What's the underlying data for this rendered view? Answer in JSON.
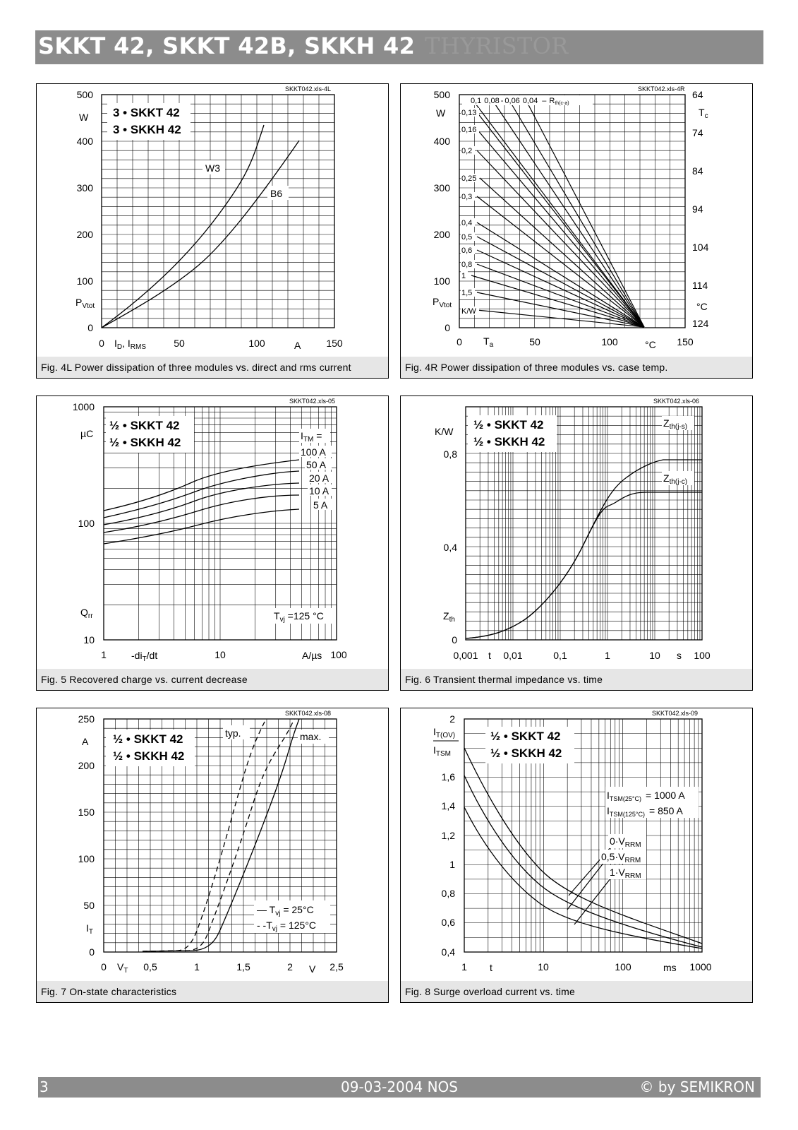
{
  "header": {
    "title": "SKKT 42, SKKT 42B, SKKH 42",
    "ghost": "THYRISTOR"
  },
  "fig4l": {
    "file_id": "SKKT042.xls-4L",
    "caption": "Fig. 4L Power dissipation of three modules vs. direct and rms current",
    "legend": [
      "3 • SKKT 42",
      "3 • SKKH 42"
    ],
    "yunit": "W",
    "ylabel": "P",
    "ylabel_sub": "Vtot",
    "xlabel": "I",
    "xlabel_sub1": "D",
    "xlabel_mid": ", I",
    "xlabel_sub2": "RMS",
    "xunit": "A",
    "yticks": [
      "500",
      "400",
      "300",
      "200",
      "100",
      "0"
    ],
    "xticks": [
      "0",
      "50",
      "100",
      "150"
    ],
    "curve_labels": [
      "W3",
      "B6"
    ]
  },
  "fig4r": {
    "file_id": "SKKT042.xls-4R",
    "caption": "Fig. 4R Power dissipation of three modules vs. case temp.",
    "yunit": "W",
    "ylabel": "P",
    "ylabel_sub": "Vtot",
    "xlabel": "T",
    "xlabel_sub": "a",
    "xunit": "°C",
    "yticks": [
      "500",
      "400",
      "300",
      "200",
      "100",
      "0"
    ],
    "xticks": [
      "0",
      "50",
      "100",
      "150"
    ],
    "rticks": [
      "64",
      "74",
      "84",
      "94",
      "104",
      "114",
      "124"
    ],
    "rlabel": "T",
    "rlabel_sub": "c",
    "runit": "°C",
    "rth_label": "R",
    "rth_sub": "th(c-a)",
    "rth_values": [
      "0,1",
      "0,08",
      "0,06",
      "0,04",
      "0,13",
      "0,16",
      "0,2",
      "0,25",
      "0,3",
      "0,4",
      "0,5",
      "0,6",
      "0,8",
      "1",
      "1,5"
    ],
    "rth_unit": "K/W"
  },
  "fig5": {
    "file_id": "SKKT042.xls-05",
    "caption": "Fig. 5 Recovered charge vs. current decrease",
    "legend": [
      "½ • SKKT 42",
      "½ • SKKH 42"
    ],
    "yunit": "µC",
    "ylabel": "Q",
    "ylabel_sub": "rr",
    "xlabel": "-di",
    "xlabel_sub": "T",
    "xlabel_tail": "/dt",
    "xunit": "A/µs",
    "yticks": [
      "1000",
      "100",
      "10"
    ],
    "xticks": [
      "1",
      "10",
      "100"
    ],
    "param": "I",
    "param_sub": "TM",
    "param_eq": " =",
    "curve_labels": [
      "100 A",
      "50 A",
      "20 A",
      "10 A",
      "5 A"
    ],
    "cond": "T",
    "cond_sub": "vj",
    "cond_val": " =125 °C"
  },
  "fig6": {
    "file_id": "SKKT042.xls-06",
    "caption": "Fig. 6 Transient thermal impedance vs. time",
    "legend": [
      "½ • SKKT 42",
      "½ • SKKH 42"
    ],
    "yunit": "K/W",
    "ylabel": "Z",
    "ylabel_sub": "th",
    "xlabel": "t",
    "xunit": "s",
    "yticks": [
      "0,8",
      "0,4",
      "0"
    ],
    "xticks": [
      "0,001",
      "0,01",
      "0,1",
      "1",
      "10",
      "100"
    ],
    "curve_labels": [
      {
        "main": "Z",
        "sub": "th(j-s)"
      },
      {
        "main": "Z",
        "sub": "th(j-c)"
      }
    ]
  },
  "fig7": {
    "file_id": "SKKT042.xls-08",
    "caption": "Fig. 7 On-state characteristics",
    "legend": [
      "½ • SKKT 42",
      "½ • SKKH 42"
    ],
    "yunit": "A",
    "ylabel": "I",
    "ylabel_sub": "T",
    "xlabel": "V",
    "xlabel_sub": "T",
    "xunit": "V",
    "yticks": [
      "250",
      "200",
      "150",
      "100",
      "50",
      "0"
    ],
    "xticks": [
      "0",
      "0,5",
      "1",
      "1,5",
      "2",
      "2,5"
    ],
    "typ_label": "typ.",
    "max_label": "max.",
    "cond1_prefix": "— T",
    "cond1_sub": "vj",
    "cond1_val": " =  25°C",
    "cond2_prefix": "- -T",
    "cond2_sub": "vj",
    "cond2_val": " = 125°C"
  },
  "fig8": {
    "file_id": "SKKT042.xls-09",
    "caption": "Fig. 8 Surge overload current vs. time",
    "legend": [
      "½ • SKKT 42",
      "½ • SKKH 42"
    ],
    "ylabel_top": "I",
    "ylabel_top_sub": "T(OV)",
    "ylabel_bot": "I",
    "ylabel_bot_sub": "TSM",
    "xlabel": "t",
    "xunit": "ms",
    "yticks": [
      "2",
      "1,6",
      "1,4",
      "1,2",
      "1",
      "0,8",
      "0,6",
      "0,4"
    ],
    "xticks": [
      "1",
      "10",
      "100",
      "1000"
    ],
    "tsm1_main": "I",
    "tsm1_sub": "TSM(25°C)",
    "tsm1_val": "= 1000 A",
    "tsm2_main": "I",
    "tsm2_sub": "TSM(125°C)",
    "tsm2_val": "=   850 A",
    "vr_labels": [
      {
        "pre": "0·V",
        "sub": "RRM"
      },
      {
        "pre": "0,5·V",
        "sub": "RRM"
      },
      {
        "pre": "1·V",
        "sub": "RRM"
      }
    ]
  },
  "footer": {
    "page": "3",
    "date": "09-03-2004  NOS",
    "copyright": "© by SEMIKRON"
  }
}
